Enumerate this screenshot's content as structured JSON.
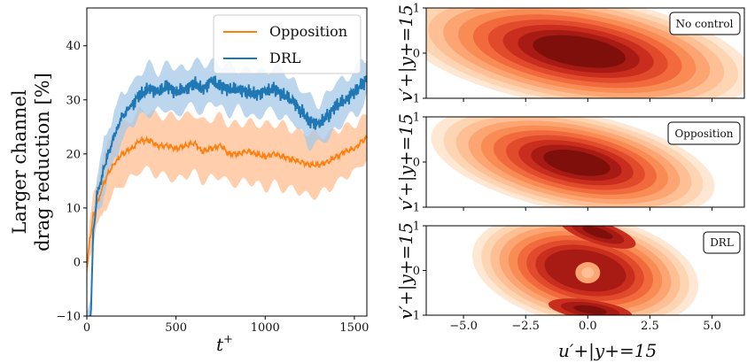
{
  "chart_data": [
    {
      "type": "line",
      "xlabel": "t",
      "xlabel_sup": "+",
      "ylabel_lines": [
        "Larger channel",
        "drag reduction [%]"
      ],
      "xlim": [
        0,
        1570
      ],
      "ylim": [
        -10,
        47
      ],
      "xticks": [
        0,
        500,
        1000,
        1500
      ],
      "yticks": [
        -10,
        0,
        10,
        20,
        30,
        40
      ],
      "legend": "top-right",
      "grid": false,
      "series": [
        {
          "name": "Opposition",
          "color": "#ff7f0e",
          "band_color": "#ffbb8a",
          "x": [
            0,
            20,
            40,
            60,
            80,
            100,
            130,
            160,
            200,
            250,
            300,
            350,
            400,
            450,
            500,
            550,
            600,
            650,
            700,
            750,
            800,
            850,
            900,
            950,
            1000,
            1050,
            1100,
            1150,
            1200,
            1250,
            1300,
            1350,
            1400,
            1450,
            1500,
            1550,
            1570
          ],
          "y": [
            -1,
            5,
            9,
            11,
            13,
            15,
            17,
            18.5,
            20,
            21,
            22.5,
            22.5,
            21.5,
            21.5,
            21,
            21.5,
            22,
            20.5,
            21,
            21.5,
            20,
            20,
            20.5,
            20,
            19.5,
            20,
            19.5,
            19,
            18.5,
            18,
            18,
            18.5,
            19.5,
            20.5,
            21,
            22.5,
            23
          ],
          "band": [
            1,
            3,
            4,
            4.5,
            5,
            5,
            5.5,
            5.5,
            5.5,
            5.5,
            5.5,
            5.5,
            5.5,
            5.5,
            6,
            5.5,
            5.5,
            5.5,
            5.5,
            5.5,
            5.5,
            5.5,
            5.5,
            5.5,
            6,
            5.5,
            6,
            5.5,
            5.5,
            6,
            5.5,
            5,
            5,
            4.5,
            4.5,
            4,
            4
          ]
        },
        {
          "name": "DRL",
          "color": "#1f77b4",
          "band_color": "#a6c8e8",
          "x": [
            0,
            20,
            40,
            60,
            80,
            100,
            130,
            160,
            200,
            250,
            300,
            350,
            400,
            450,
            500,
            550,
            600,
            650,
            700,
            750,
            800,
            850,
            900,
            950,
            1000,
            1050,
            1100,
            1150,
            1200,
            1250,
            1300,
            1350,
            1400,
            1450,
            1500,
            1550,
            1570
          ],
          "y": [
            -12,
            -10,
            7,
            13,
            15,
            18,
            21,
            24,
            27,
            29,
            31,
            32,
            31.5,
            32.5,
            31.5,
            32,
            33,
            32,
            33.5,
            32.5,
            32,
            32,
            31.5,
            31,
            31.5,
            32,
            31,
            30,
            28,
            26,
            25.5,
            27,
            29,
            30,
            31.5,
            33,
            34
          ]
        }
      ]
    },
    {
      "type": "contour",
      "panels": [
        {
          "label": "No control"
        },
        {
          "label": "Opposition"
        },
        {
          "label": "DRL"
        }
      ],
      "xlabel": "u′+|y+=15",
      "ylabel": "v′+|y+=15",
      "xlim": [
        -6.5,
        6.3
      ],
      "ylim": [
        -1,
        1
      ],
      "xticks": [
        -5.0,
        -2.5,
        0.0,
        2.5,
        5.0
      ],
      "xtick_labels": [
        "−5.0",
        "−2.5",
        "0.0",
        "2.5",
        "5.0"
      ],
      "yticks": [
        -1,
        0,
        1
      ],
      "ytick_labels": [
        "−1",
        "0",
        "1"
      ],
      "colormap": "OrRd"
    }
  ]
}
